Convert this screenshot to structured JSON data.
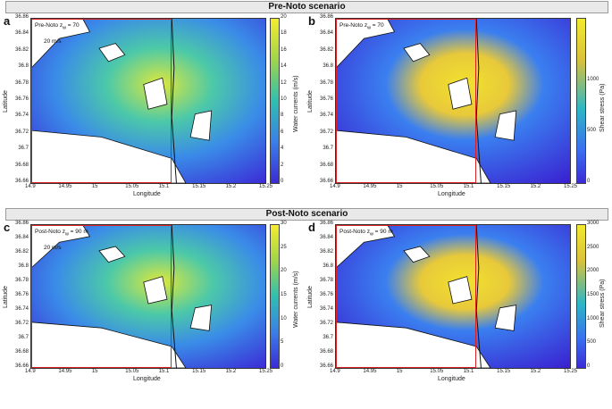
{
  "banners": {
    "pre": "Pre-Noto scenario",
    "post": "Post-Noto scenario"
  },
  "panels": [
    {
      "letter": "a",
      "label": "Pre-Noto z",
      "sub": "w",
      "tail": " = 70",
      "scale": "20 m/s",
      "kind": "currents"
    },
    {
      "letter": "b",
      "label": "Pre-Noto z",
      "sub": "w",
      "tail": " = 70",
      "scale": "",
      "kind": "stress"
    },
    {
      "letter": "c",
      "label": "Post-Noto z",
      "sub": "w",
      "tail": " = 90 m",
      "scale": "20 m/s",
      "kind": "currents"
    },
    {
      "letter": "d",
      "label": "Post-Noto z",
      "sub": "w",
      "tail": " = 90 m",
      "scale": "",
      "kind": "stress"
    }
  ],
  "axes": {
    "xlabel": "Longitude",
    "ylabel": "Latitude",
    "xticks": [
      "14.9",
      "14.95",
      "15",
      "15.05",
      "15.1",
      "15.15",
      "15.2",
      "15.25"
    ],
    "yticks": [
      "36.86",
      "36.84",
      "36.82",
      "36.8",
      "36.78",
      "36.76",
      "36.74",
      "36.72",
      "36.7",
      "36.68",
      "36.66"
    ]
  },
  "colorbars": [
    {
      "label": "Water currents (m/s)",
      "ticks": [
        "20",
        "18",
        "16",
        "14",
        "12",
        "10",
        "8",
        "6",
        "4",
        "2",
        "0"
      ]
    },
    {
      "label": "Shear stress (Pa)",
      "ticks": [
        "1000",
        "500",
        "0"
      ]
    },
    {
      "label": "Water currents (m/s)",
      "ticks": [
        "30",
        "25",
        "20",
        "15",
        "10",
        "5",
        "0"
      ]
    },
    {
      "label": "Shear stress (Pa)",
      "ticks": [
        "3000",
        "2500",
        "2000",
        "1500",
        "1000",
        "500",
        "0"
      ]
    }
  ],
  "colors": {
    "low": "#3b2bd6",
    "mid": "#22b7c7",
    "high": "#f0e630",
    "land": "#ffffff",
    "box": "#e02020"
  }
}
